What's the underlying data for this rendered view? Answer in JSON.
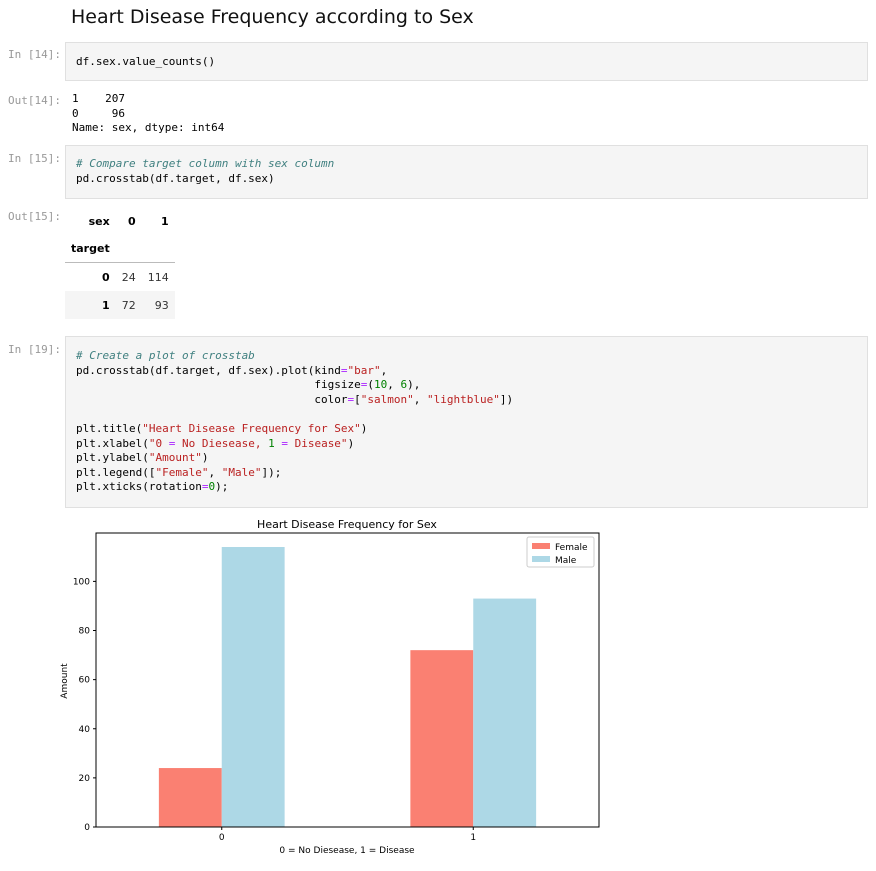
{
  "heading": "Heart Disease Frequency according to Sex",
  "cells": {
    "c14": {
      "in_prompt": "In [14]:",
      "out_prompt": "Out[14]:",
      "code": [
        "df.sex.value_counts()"
      ],
      "output": [
        "1    207",
        "0     96",
        "Name: sex, dtype: int64"
      ]
    },
    "c15": {
      "in_prompt": "In [15]:",
      "out_prompt": "Out[15]:",
      "code": [
        "# Compare target column with sex column",
        "pd.crosstab(df.target, df.sex)"
      ]
    },
    "c19": {
      "in_prompt": "In [19]:",
      "code": [
        "# Create a plot of crosstab",
        "pd.crosstab(df.target, df.sex).plot(kind=\"bar\",",
        "                                    figsize=(10, 6),",
        "                                    color=[\"salmon\", \"lightblue\"])",
        "",
        "plt.title(\"Heart Disease Frequency for Sex\")",
        "plt.xlabel(\"0 = No Diesease, 1 = Disease\")",
        "plt.ylabel(\"Amount\")",
        "plt.legend([\"Female\", \"Male\"]);",
        "plt.xticks(rotation=0);"
      ]
    }
  },
  "crosstab": {
    "columns_name": "sex",
    "index_name": "target",
    "columns": [
      "0",
      "1"
    ],
    "rows": [
      {
        "index": "0",
        "values": [
          "24",
          "114"
        ]
      },
      {
        "index": "1",
        "values": [
          "72",
          "93"
        ]
      }
    ]
  },
  "chart_data": {
    "type": "bar",
    "title": "Heart Disease Frequency for Sex",
    "xlabel": "0 = No Diesease, 1 = Disease",
    "ylabel": "Amount",
    "categories": [
      "0",
      "1"
    ],
    "series": [
      {
        "name": "Female",
        "values": [
          24,
          72
        ],
        "color": "#fa8072"
      },
      {
        "name": "Male",
        "values": [
          114,
          93
        ],
        "color": "#add8e6"
      }
    ],
    "ylim": [
      0,
      119.7
    ],
    "yticks": [
      0,
      20,
      40,
      60,
      80,
      100
    ],
    "legend": "top-right",
    "grid": false
  }
}
